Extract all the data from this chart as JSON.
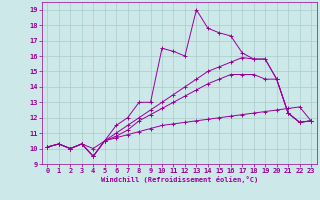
{
  "xlabel": "Windchill (Refroidissement éolien,°C)",
  "xlim": [
    -0.5,
    23.5
  ],
  "ylim": [
    9,
    19.5
  ],
  "yticks": [
    9,
    10,
    11,
    12,
    13,
    14,
    15,
    16,
    17,
    18,
    19
  ],
  "xticks": [
    0,
    1,
    2,
    3,
    4,
    5,
    6,
    7,
    8,
    9,
    10,
    11,
    12,
    13,
    14,
    15,
    16,
    17,
    18,
    19,
    20,
    21,
    22,
    23
  ],
  "bg_color": "#cce8e8",
  "grid_color": "#aacccc",
  "line_color": "#990099",
  "lines": [
    {
      "x": [
        0,
        1,
        2,
        3,
        4,
        5,
        6,
        7,
        8,
        9,
        10,
        11,
        12,
        13,
        14,
        15,
        16,
        17,
        18,
        19,
        20,
        21,
        22,
        23
      ],
      "y": [
        10.1,
        10.3,
        10.0,
        10.3,
        9.5,
        10.5,
        11.5,
        12.0,
        13.0,
        13.0,
        16.5,
        16.3,
        16.0,
        19.0,
        17.8,
        17.5,
        17.3,
        16.2,
        15.8,
        15.8,
        14.5,
        12.3,
        11.7,
        11.8
      ]
    },
    {
      "x": [
        0,
        1,
        2,
        3,
        4,
        5,
        6,
        7,
        8,
        9,
        10,
        11,
        12,
        13,
        14,
        15,
        16,
        17,
        18,
        19,
        20,
        21,
        22,
        23
      ],
      "y": [
        10.1,
        10.3,
        10.0,
        10.3,
        10.0,
        10.5,
        11.0,
        11.5,
        12.0,
        12.5,
        13.0,
        13.5,
        14.0,
        14.5,
        15.0,
        15.3,
        15.6,
        15.9,
        15.8,
        15.8,
        14.5,
        12.3,
        11.7,
        11.8
      ]
    },
    {
      "x": [
        0,
        1,
        2,
        3,
        4,
        5,
        6,
        7,
        8,
        9,
        10,
        11,
        12,
        13,
        14,
        15,
        16,
        17,
        18,
        19,
        20,
        21,
        22,
        23
      ],
      "y": [
        10.1,
        10.3,
        10.0,
        10.3,
        9.5,
        10.5,
        10.8,
        11.2,
        11.8,
        12.2,
        12.6,
        13.0,
        13.4,
        13.8,
        14.2,
        14.5,
        14.8,
        14.8,
        14.8,
        14.5,
        14.5,
        12.3,
        11.7,
        11.8
      ]
    },
    {
      "x": [
        0,
        1,
        2,
        3,
        4,
        5,
        6,
        7,
        8,
        9,
        10,
        11,
        12,
        13,
        14,
        15,
        16,
        17,
        18,
        19,
        20,
        21,
        22,
        23
      ],
      "y": [
        10.1,
        10.3,
        10.0,
        10.3,
        9.5,
        10.5,
        10.7,
        10.9,
        11.1,
        11.3,
        11.5,
        11.6,
        11.7,
        11.8,
        11.9,
        12.0,
        12.1,
        12.2,
        12.3,
        12.4,
        12.5,
        12.6,
        12.7,
        11.8
      ]
    }
  ]
}
